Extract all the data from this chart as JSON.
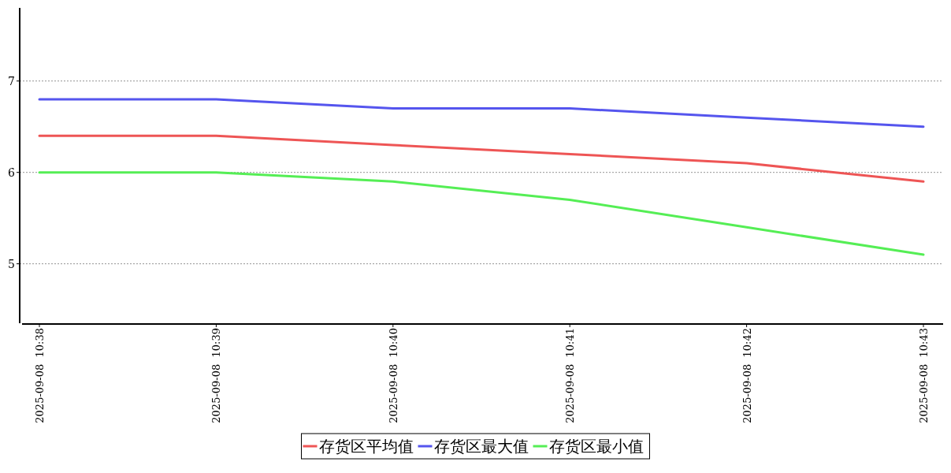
{
  "chart_data": {
    "type": "line",
    "categories": [
      "2025-09-08  10:38",
      "2025-09-08  10:39",
      "2025-09-08  10:40",
      "2025-09-08  10:41",
      "2025-09-08  10:42",
      "2025-09-08  10:43"
    ],
    "series": [
      {
        "name": "存货区平均值",
        "color": "#ee5555",
        "values": [
          6.4,
          6.4,
          6.3,
          6.2,
          6.1,
          5.9
        ]
      },
      {
        "name": "存货区最大值",
        "color": "#5555ee",
        "values": [
          6.8,
          6.8,
          6.7,
          6.7,
          6.6,
          6.5
        ]
      },
      {
        "name": "存货区最小值",
        "color": "#55ee55",
        "values": [
          6.0,
          6.0,
          5.9,
          5.7,
          5.4,
          5.1
        ]
      }
    ],
    "ylim": [
      4.35,
      7.8
    ],
    "yticks": [
      5,
      6,
      7
    ],
    "grid": "y",
    "legend": "bottom",
    "marker": "none",
    "line_style": "solid"
  }
}
